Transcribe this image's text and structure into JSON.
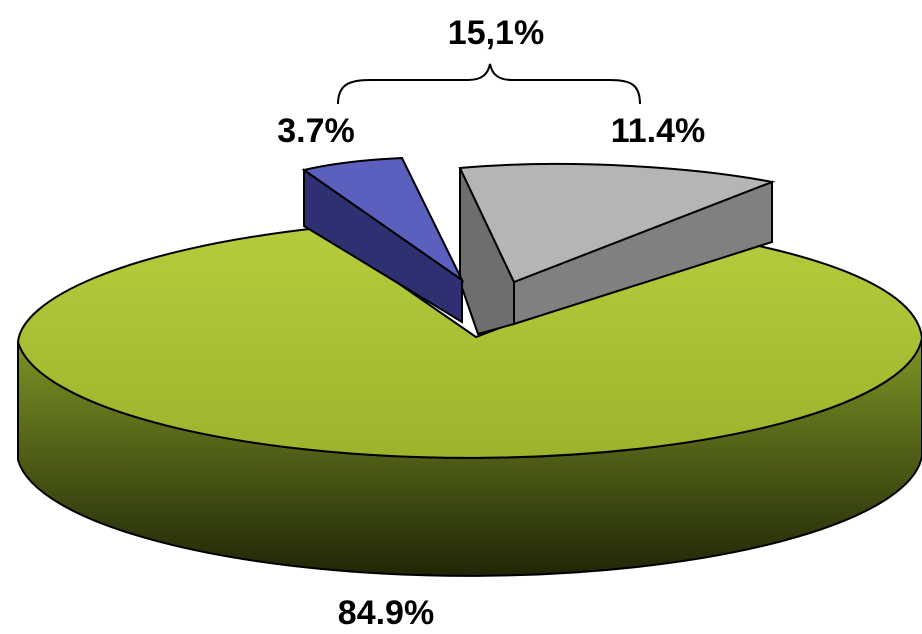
{
  "chart_data": {
    "type": "pie",
    "style": "3d-exploded",
    "slices": [
      {
        "label": "84.9%",
        "value": 84.9,
        "color": "#a8c034"
      },
      {
        "label": "11.4%",
        "value": 11.4,
        "color": "#b3b3b3"
      },
      {
        "label": "3.7%",
        "value": 3.7,
        "color": "#5a5fb4"
      }
    ],
    "annotation": {
      "label": "15,1%",
      "brackets": [
        "11.4%",
        "3.7%"
      ]
    },
    "title": "",
    "legend": "none"
  }
}
